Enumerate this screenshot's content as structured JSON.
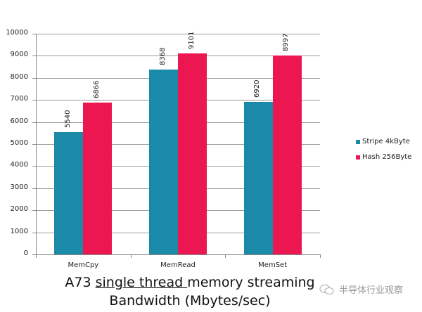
{
  "chart_data": {
    "type": "bar",
    "title": "A73 single thread memory streaming Bandwidth (Mbytes/sec)",
    "xlabel": "",
    "ylabel": "",
    "categories": [
      "MemCpy",
      "MemRead",
      "MemSet"
    ],
    "series": [
      {
        "name": "Stripe 4kByte",
        "color": "#1a8aa8",
        "values": [
          5540,
          8368,
          6920
        ]
      },
      {
        "name": "Hash 256Byte",
        "color": "#ec1651",
        "values": [
          6866,
          9101,
          8997
        ]
      }
    ],
    "ylim": [
      0,
      10000
    ],
    "yticks": [
      "0",
      "1000",
      "2000",
      "3000",
      "4000",
      "5000",
      "6000",
      "7000",
      "8000",
      "9000",
      "10000"
    ],
    "grid": true,
    "legend_position": "right"
  },
  "title": {
    "line1_pre": "A73 ",
    "line1_underlined": "single thread ",
    "line1_post": "memory streaming",
    "line2": "Bandwidth (Mbytes/sec)"
  },
  "watermark": {
    "text": "半导体行业观察",
    "icon": "wechat-icon"
  }
}
